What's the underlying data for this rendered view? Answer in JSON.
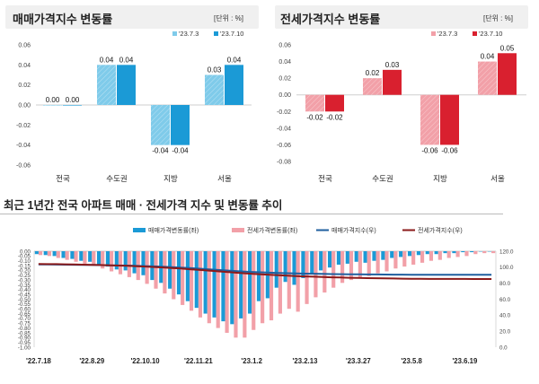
{
  "colors": {
    "sale_old": "#7fcbea",
    "sale_new": "#1b9ad6",
    "jeonse_old": "#f2a0a8",
    "jeonse_new": "#d9202f",
    "sale_index_line": "#1f5f9f",
    "jeonse_index_line": "#8b1a1a",
    "header_bg": "#f0f0f0"
  },
  "panels": [
    {
      "title": "매매가격지수 변동률",
      "unit": "[단위 : %]",
      "legend": [
        "'23.7.3",
        "'23.7.10"
      ],
      "y_ticks": [
        "0.06",
        "0.04",
        "0.02",
        "0.00",
        "-0.02",
        "-0.04",
        "-0.06"
      ]
    },
    {
      "title": "전세가격지수 변동률",
      "unit": "[단위 : %]",
      "legend": [
        "'23.7.3",
        "'23.7.10"
      ],
      "y_ticks": [
        "0.06",
        "0.04",
        "0.02",
        "0.00",
        "-0.02",
        "-0.04",
        "-0.06",
        "-0.08"
      ]
    }
  ],
  "trend": {
    "title": "최근 1년간 전국 아파트 매매 · 전세가격 지수 및 변동률 추이",
    "legend": [
      "매매가격변동률(좌)",
      "전세가격변동률(좌)",
      "매매가격지수(우)",
      "전세가격지수(우)"
    ],
    "left_ticks": [
      "0.00",
      "-0.05",
      "-0.10",
      "-0.15",
      "-0.20",
      "-0.25",
      "-0.30",
      "-0.35",
      "-0.40",
      "-0.45",
      "-0.50",
      "-0.55",
      "-0.60",
      "-0.65",
      "-0.70",
      "-0.75",
      "-0.80",
      "-0.85",
      "-0.90",
      "-0.95",
      "-1.00"
    ],
    "right_ticks": [
      "120.0",
      "100.0",
      "80.0",
      "60.0",
      "40.0",
      "20.0",
      "0.0"
    ],
    "x_labels": [
      "'22.7.18",
      "'22.8.29",
      "'22.10.10",
      "'22.11.21",
      "'23.1.2",
      "'23.2.13",
      "'23.3.27",
      "'23.5.8",
      "'23.6.19"
    ]
  },
  "chart_data": [
    {
      "type": "bar",
      "title": "매매가격지수 변동률",
      "ylabel": "[단위 : %]",
      "categories": [
        "전국",
        "수도권",
        "지방",
        "서울"
      ],
      "series": [
        {
          "name": "'23.7.3",
          "values": [
            0.0,
            0.04,
            -0.04,
            0.03
          ]
        },
        {
          "name": "'23.7.10",
          "values": [
            0.0,
            0.04,
            -0.04,
            0.04
          ]
        }
      ],
      "data_labels": [
        [
          "0.00",
          "0.04",
          "-0.04",
          "0.03"
        ],
        [
          "0.00",
          "0.04",
          "-0.04",
          "0.04"
        ]
      ],
      "ylim": [
        -0.06,
        0.06
      ],
      "legend_position": "top-right"
    },
    {
      "type": "bar",
      "title": "전세가격지수 변동률",
      "ylabel": "[단위 : %]",
      "categories": [
        "전국",
        "수도권",
        "지방",
        "서울"
      ],
      "series": [
        {
          "name": "'23.7.3",
          "values": [
            -0.02,
            0.02,
            -0.06,
            0.04
          ]
        },
        {
          "name": "'23.7.10",
          "values": [
            -0.02,
            0.03,
            -0.06,
            0.05
          ]
        }
      ],
      "data_labels": [
        [
          "-0.02",
          "0.02",
          "-0.06",
          "0.04"
        ],
        [
          "-0.02",
          "0.03",
          "-0.06",
          "0.05"
        ]
      ],
      "ylim": [
        -0.08,
        0.06
      ],
      "legend_position": "top-right"
    },
    {
      "type": "bar",
      "title": "최근 1년간 전국 아파트 매매 · 전세가격 지수 및 변동률 추이",
      "x": [
        "'22.7.18",
        "'22.7.25",
        "'22.8.1",
        "'22.8.8",
        "'22.8.15",
        "'22.8.22",
        "'22.8.29",
        "'22.9.5",
        "'22.9.12",
        "'22.9.19",
        "'22.9.26",
        "'22.10.3",
        "'22.10.10",
        "'22.10.17",
        "'22.10.24",
        "'22.10.31",
        "'22.11.7",
        "'22.11.14",
        "'22.11.21",
        "'22.11.28",
        "'22.12.5",
        "'22.12.12",
        "'22.12.19",
        "'22.12.26",
        "'23.1.2",
        "'23.1.9",
        "'23.1.16",
        "'23.1.23",
        "'23.1.30",
        "'23.2.6",
        "'23.2.13",
        "'23.2.20",
        "'23.2.27",
        "'23.3.6",
        "'23.3.13",
        "'23.3.20",
        "'23.3.27",
        "'23.4.3",
        "'23.4.10",
        "'23.4.17",
        "'23.4.24",
        "'23.5.1",
        "'23.5.8",
        "'23.5.15",
        "'23.5.22",
        "'23.5.29",
        "'23.6.5",
        "'23.6.12",
        "'23.6.19",
        "'23.6.26",
        "'23.7.3",
        "'23.7.10"
      ],
      "series": [
        {
          "name": "매매가격변동률(좌)",
          "axis": "left",
          "type": "bar",
          "values": [
            -0.03,
            -0.04,
            -0.05,
            -0.07,
            -0.08,
            -0.1,
            -0.11,
            -0.14,
            -0.16,
            -0.19,
            -0.2,
            -0.23,
            -0.25,
            -0.3,
            -0.33,
            -0.39,
            -0.45,
            -0.52,
            -0.59,
            -0.65,
            -0.69,
            -0.73,
            -0.76,
            -0.7,
            -0.65,
            -0.52,
            -0.49,
            -0.38,
            -0.32,
            -0.35,
            -0.28,
            -0.23,
            -0.2,
            -0.17,
            -0.14,
            -0.13,
            -0.11,
            -0.12,
            -0.1,
            -0.09,
            -0.07,
            -0.06,
            -0.05,
            -0.04,
            -0.03,
            -0.03,
            -0.02,
            -0.02,
            -0.01,
            -0.01,
            0.0,
            0.0
          ]
        },
        {
          "name": "전세가격변동률(좌)",
          "axis": "left",
          "type": "bar",
          "values": [
            -0.04,
            -0.05,
            -0.07,
            -0.09,
            -0.11,
            -0.13,
            -0.15,
            -0.18,
            -0.21,
            -0.24,
            -0.27,
            -0.3,
            -0.34,
            -0.39,
            -0.44,
            -0.5,
            -0.56,
            -0.62,
            -0.69,
            -0.75,
            -0.8,
            -0.85,
            -0.9,
            -0.9,
            -0.82,
            -0.75,
            -0.72,
            -0.65,
            -0.6,
            -0.63,
            -0.55,
            -0.48,
            -0.43,
            -0.38,
            -0.33,
            -0.3,
            -0.27,
            -0.26,
            -0.23,
            -0.21,
            -0.18,
            -0.16,
            -0.14,
            -0.12,
            -0.1,
            -0.09,
            -0.07,
            -0.06,
            -0.05,
            -0.03,
            -0.02,
            -0.02
          ]
        },
        {
          "name": "매매가격지수(우)",
          "axis": "right",
          "type": "line",
          "values": [
            103.5,
            103.4,
            103.3,
            103.2,
            103.1,
            103.0,
            102.8,
            102.6,
            102.4,
            102.2,
            102.0,
            101.7,
            101.4,
            101.0,
            100.6,
            100.1,
            99.5,
            98.9,
            98.2,
            97.5,
            96.8,
            96.0,
            95.3,
            94.7,
            94.1,
            93.6,
            93.2,
            92.8,
            92.5,
            92.2,
            92.0,
            91.8,
            91.6,
            91.4,
            91.3,
            91.2,
            91.1,
            91.0,
            90.9,
            90.8,
            90.7,
            90.7,
            90.6,
            90.6,
            90.6,
            90.5,
            90.5,
            90.5,
            90.5,
            90.5,
            90.5,
            90.5
          ]
        },
        {
          "name": "전세가격지수(우)",
          "axis": "right",
          "type": "line",
          "values": [
            104.0,
            103.9,
            103.8,
            103.6,
            103.4,
            103.2,
            103.0,
            102.7,
            102.4,
            102.1,
            101.7,
            101.3,
            100.8,
            100.3,
            99.7,
            99.0,
            98.3,
            97.5,
            96.7,
            95.9,
            95.0,
            94.2,
            93.3,
            92.5,
            91.8,
            91.1,
            90.5,
            89.9,
            89.4,
            88.9,
            88.5,
            88.1,
            87.7,
            87.4,
            87.1,
            86.8,
            86.6,
            86.4,
            86.2,
            86.0,
            85.9,
            85.7,
            85.6,
            85.5,
            85.4,
            85.4,
            85.3,
            85.3,
            85.3,
            85.2,
            85.2,
            85.2
          ]
        }
      ],
      "x_tick_labels": [
        "'22.7.18",
        "'22.8.29",
        "'22.10.10",
        "'22.11.21",
        "'23.1.2",
        "'23.2.13",
        "'23.3.27",
        "'23.5.8",
        "'23.6.19"
      ],
      "ylim": [
        -1.0,
        0.0
      ],
      "ylim_right": [
        0,
        120
      ],
      "legend_position": "top"
    }
  ]
}
